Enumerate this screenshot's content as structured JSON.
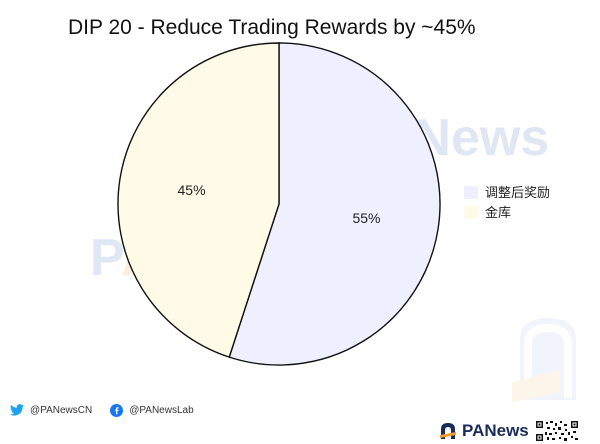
{
  "chart_data": {
    "type": "pie",
    "title": "DIP 20 - Reduce Trading Rewards by ~45%",
    "slices": [
      {
        "label": "调整后奖励",
        "value": 55,
        "display": "55%",
        "color": "#eef0ff"
      },
      {
        "label": "金库",
        "value": 45,
        "display": "45%",
        "color": "#fffbe6"
      }
    ],
    "start_angle_deg": 0,
    "direction": "clockwise",
    "legend_position": "right",
    "edge_color": "#111111"
  },
  "watermark": {
    "text": "PANews",
    "colors": {
      "blue": "#8fa9d8",
      "orange": "#f3c07a"
    }
  },
  "footer": {
    "twitter_handle": "@PANewsCN",
    "facebook_handle": "@PANewsLab",
    "twitter_icon": "twitter-icon",
    "facebook_icon": "facebook-icon",
    "brand": "PANews",
    "brand_icon": "panews-logo",
    "twitter_color": "#1da1f2",
    "facebook_color": "#1877f2"
  }
}
